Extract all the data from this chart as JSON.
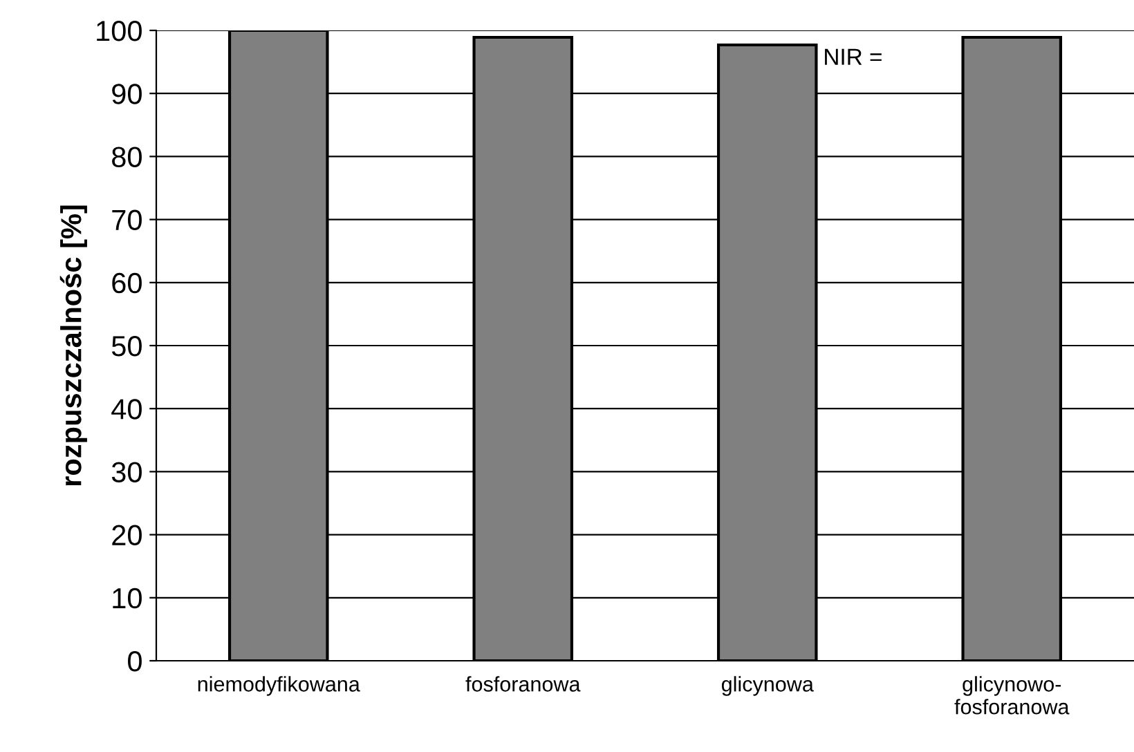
{
  "chart_data": {
    "type": "bar",
    "ylabel": "rozpuszczalnośc [%]",
    "categories": [
      "niemodyfikowana",
      "fosforanowa",
      "glicynowa",
      "glicynowo-\nfosforanowa"
    ],
    "values": [
      100,
      98.9,
      97.7,
      98.9
    ],
    "color": "#808080",
    "ylim": [
      0,
      100
    ],
    "yticks": [
      0,
      10,
      20,
      30,
      40,
      50,
      60,
      70,
      80,
      90,
      100
    ],
    "grid": "y",
    "annotations": [
      "NIR ="
    ]
  }
}
